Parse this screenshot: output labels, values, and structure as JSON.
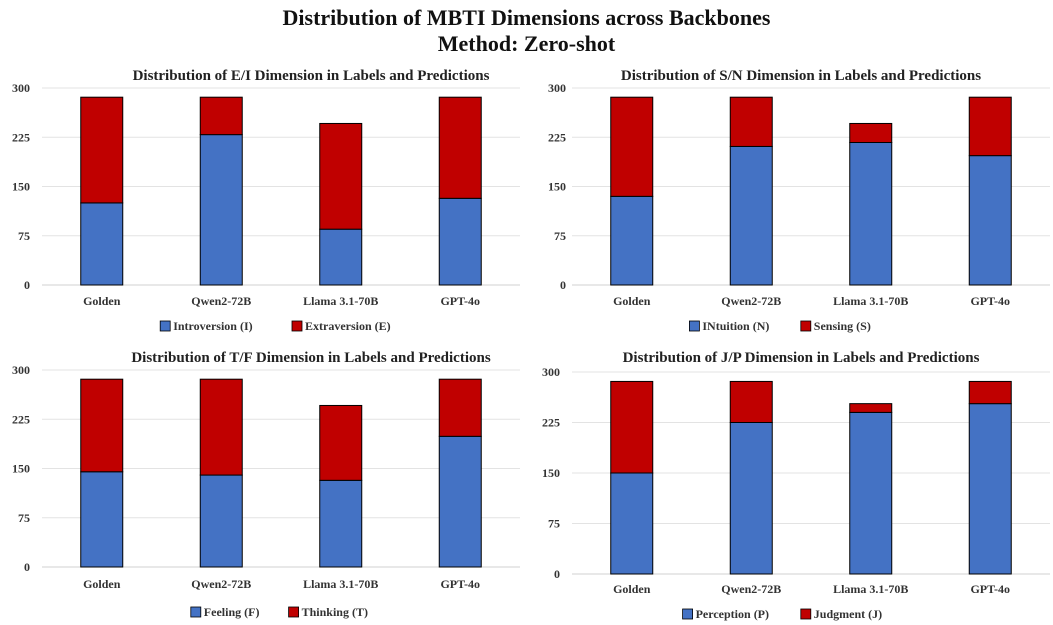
{
  "title_line1": "Distribution of MBTI Dimensions across Backbones",
  "title_line2": "Method: Zero-shot",
  "colors": {
    "bottom": "#4472C4",
    "top": "#C00000",
    "grid": "#E3E3E3",
    "axis": "#D0D0D0"
  },
  "chart_data": [
    {
      "type": "bar",
      "title": "Distribution of E/I Dimension in Labels and Predictions",
      "categories": [
        "Golden",
        "Qwen2-72B",
        "Llama 3.1-70B",
        "GPT-4o"
      ],
      "series": [
        {
          "name": "Introversion (I)",
          "values": [
            125,
            229,
            85,
            132
          ]
        },
        {
          "name": "Extraversion (E)",
          "values": [
            161,
            57,
            161,
            154
          ]
        }
      ],
      "yticks": [
        "0",
        "75",
        "150",
        "225",
        "300"
      ],
      "ylim": [
        0,
        300
      ],
      "stacked": true,
      "legend": "bottom",
      "grid": true
    },
    {
      "type": "bar",
      "title": "Distribution of S/N Dimension in Labels and Predictions",
      "categories": [
        "Golden",
        "Qwen2-72B",
        "Llama 3.1-70B",
        "GPT-4o"
      ],
      "series": [
        {
          "name": "INtuition (N)",
          "values": [
            135,
            211,
            217,
            197
          ]
        },
        {
          "name": "Sensing (S)",
          "values": [
            151,
            75,
            29,
            89
          ]
        }
      ],
      "yticks": [
        "0",
        "75",
        "150",
        "225",
        "300"
      ],
      "ylim": [
        0,
        300
      ],
      "stacked": true,
      "legend": "bottom",
      "grid": true
    },
    {
      "type": "bar",
      "title": "Distribution of T/F Dimension in Labels and Predictions",
      "categories": [
        "Golden",
        "Qwen2-72B",
        "Llama 3.1-70B",
        "GPT-4o"
      ],
      "series": [
        {
          "name": "Feeling (F)",
          "values": [
            145,
            140,
            132,
            199
          ]
        },
        {
          "name": "Thinking (T)",
          "values": [
            141,
            146,
            114,
            87
          ]
        }
      ],
      "yticks": [
        "0",
        "75",
        "150",
        "225",
        "300"
      ],
      "ylim": [
        0,
        300
      ],
      "stacked": true,
      "legend": "bottom",
      "grid": true
    },
    {
      "type": "bar",
      "title": "Distribution of J/P Dimension in Labels and Predictions",
      "categories": [
        "Golden",
        "Qwen2-72B",
        "Llama 3.1-70B",
        "GPT-4o"
      ],
      "series": [
        {
          "name": "Perception (P)",
          "values": [
            150,
            225,
            240,
            253
          ]
        },
        {
          "name": "Judgment (J)",
          "values": [
            136,
            61,
            13,
            33
          ]
        }
      ],
      "yticks": [
        "300",
        "225",
        "150",
        "75",
        "0"
      ],
      "ylim": [
        0,
        300
      ],
      "stacked": true,
      "legend": "bottom",
      "grid": true
    }
  ]
}
